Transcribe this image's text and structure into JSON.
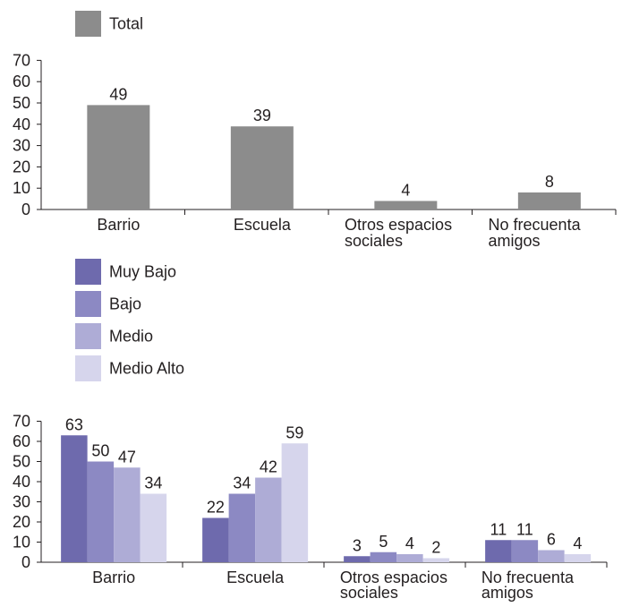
{
  "chart_data": [
    {
      "type": "bar",
      "categories": [
        "Barrio",
        "Escuela",
        "Otros espacios sociales",
        "No frecuenta amigos"
      ],
      "category_lines": [
        [
          "Barrio"
        ],
        [
          "Escuela"
        ],
        [
          "Otros espacios",
          "sociales"
        ],
        [
          "No frecuenta",
          "amigos"
        ]
      ],
      "series": [
        {
          "name": "Total",
          "values": [
            49,
            39,
            4,
            8
          ],
          "color": "#8c8c8c"
        }
      ],
      "yticks": [
        0,
        10,
        20,
        30,
        40,
        50,
        60,
        70
      ],
      "ylim": [
        0,
        70
      ],
      "legend": "top-left",
      "grid": false
    },
    {
      "type": "bar",
      "categories": [
        "Barrio",
        "Escuela",
        "Otros espacios sociales",
        "No frecuenta amigos"
      ],
      "category_lines": [
        [
          "Barrio"
        ],
        [
          "Escuela"
        ],
        [
          "Otros espacios",
          "sociales"
        ],
        [
          "No frecuenta",
          "amigos"
        ]
      ],
      "series": [
        {
          "name": "Muy Bajo",
          "values": [
            63,
            22,
            3,
            11
          ],
          "color": "#6e6aad"
        },
        {
          "name": "Bajo",
          "values": [
            50,
            34,
            5,
            11
          ],
          "color": "#8c89c3"
        },
        {
          "name": "Medio",
          "values": [
            47,
            42,
            4,
            6
          ],
          "color": "#aeacd6"
        },
        {
          "name": "Medio Alto",
          "values": [
            34,
            59,
            2,
            4
          ],
          "color": "#d6d5ec"
        }
      ],
      "yticks": [
        0,
        10,
        20,
        30,
        40,
        50,
        60,
        70
      ],
      "ylim": [
        0,
        70
      ],
      "legend": "top-left",
      "grid": false
    }
  ]
}
